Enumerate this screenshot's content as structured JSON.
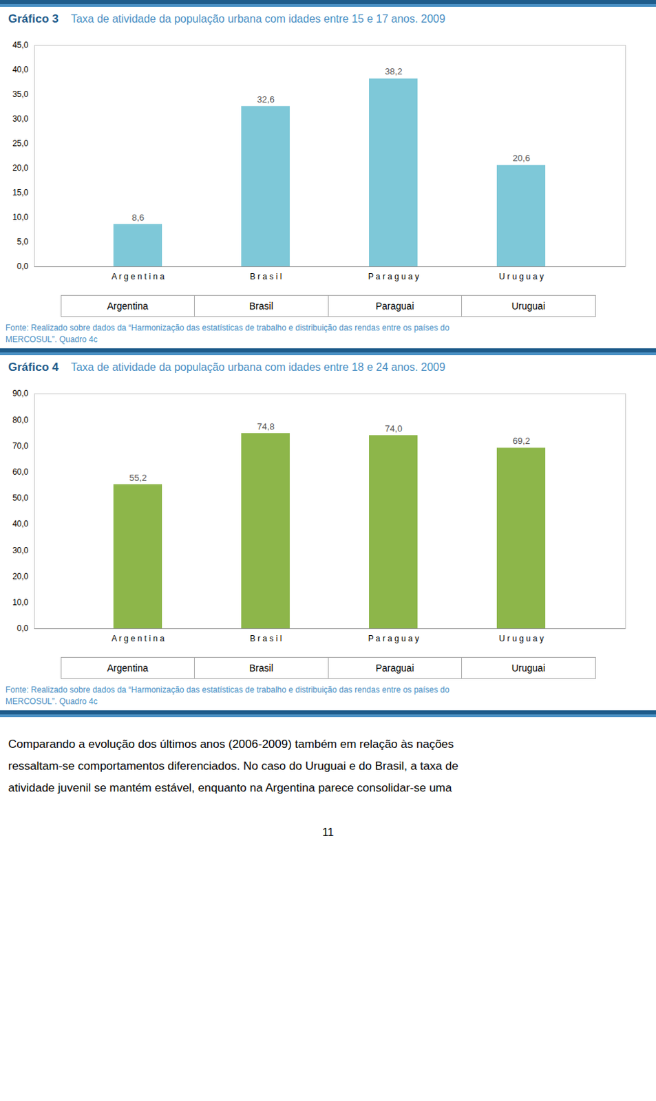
{
  "chart_data": [
    {
      "type": "bar",
      "title": "Gráfico 3",
      "subtitle": "Taxa de atividade da população urbana com idades entre 15 e 17 anos. 2009",
      "categories": [
        "A r g e n t i n a",
        "B r a s i l",
        "P a r a g u a y",
        "U r u g u a y"
      ],
      "values": [
        8.6,
        32.6,
        38.2,
        20.6
      ],
      "value_labels": [
        "8,6",
        "32,6",
        "38,2",
        "20,6"
      ],
      "data_labels": true,
      "color": "#7EC8D8",
      "ylim": [
        0,
        45
      ],
      "yticks": [
        {
          "value": 0,
          "label": "0,0"
        },
        {
          "value": 5,
          "label": "5,0"
        },
        {
          "value": 10,
          "label": "10,0"
        },
        {
          "value": 15,
          "label": "15,0"
        },
        {
          "value": 20,
          "label": "20,0"
        },
        {
          "value": 25,
          "label": "25,0"
        },
        {
          "value": 30,
          "label": "30,0"
        },
        {
          "value": 35,
          "label": "35,0"
        },
        {
          "value": 40,
          "label": "40,0"
        },
        {
          "value": 45,
          "label": "45,0"
        }
      ],
      "grid": false,
      "annotations": [
        "Argentina",
        "Brasil",
        "Paraguai",
        "Uruguai"
      ],
      "caption": [
        "Fonte: Realizado sobre dados da “Harmonização das estatísticas de trabalho e distribuição das rendas entre os países do",
        "MERCOSUL”. Quadro 4c"
      ]
    },
    {
      "type": "bar",
      "title": "Gráfico 4",
      "subtitle": "Taxa de atividade da população urbana com idades entre 18 e 24 anos. 2009",
      "categories": [
        "A r g e n t i n a",
        "B r a s i l",
        "P a r a g u a y",
        "U r u g u a y"
      ],
      "values": [
        55.2,
        74.8,
        74.0,
        69.2
      ],
      "value_labels": [
        "55,2",
        "74,8",
        "74,0",
        "69,2"
      ],
      "data_labels": true,
      "color": "#8DB64A",
      "ylim": [
        0,
        90
      ],
      "yticks": [
        {
          "value": 0,
          "label": "0,0"
        },
        {
          "value": 10,
          "label": "10,0"
        },
        {
          "value": 20,
          "label": "20,0"
        },
        {
          "value": 30,
          "label": "30,0"
        },
        {
          "value": 40,
          "label": "40,0"
        },
        {
          "value": 50,
          "label": "50,0"
        },
        {
          "value": 60,
          "label": "60,0"
        },
        {
          "value": 70,
          "label": "70,0"
        },
        {
          "value": 80,
          "label": "80,0"
        },
        {
          "value": 90,
          "label": "90,0"
        }
      ],
      "grid": false,
      "annotations": [
        "Argentina",
        "Brasil",
        "Paraguai",
        "Uruguai"
      ],
      "caption": [
        "Fonte: Realizado sobre dados da “Harmonização das estatísticas de trabalho e distribuição das rendas entre os países do",
        "MERCOSUL”. Quadro 4c"
      ]
    }
  ],
  "body_text": [
    "Comparando a evolução dos últimos anos (2006-2009) também em relação às nações",
    "ressaltam-se comportamentos diferenciados. No caso do Uruguai e do Brasil, a taxa de",
    "atividade juvenil se mantém estável, enquanto na Argentina parece consolidar-se uma"
  ],
  "page_number": "11"
}
